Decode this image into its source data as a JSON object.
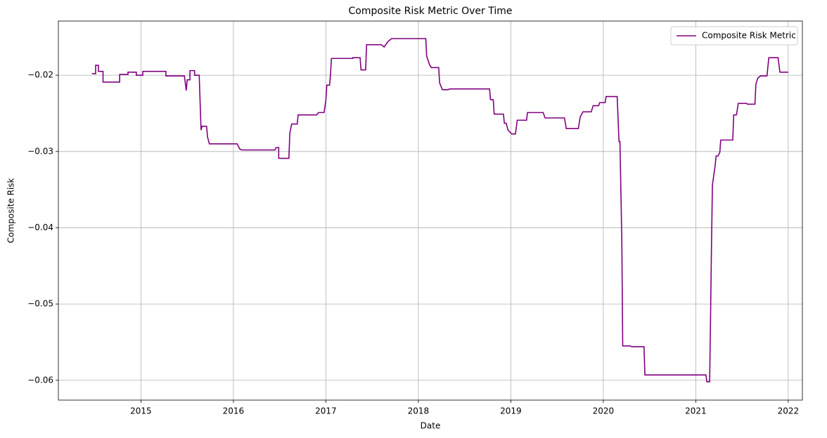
{
  "chart_data": {
    "type": "line",
    "title": "Composite Risk Metric Over Time",
    "x_label": "Date",
    "y_label": "Composite Risk",
    "x": [
      2014.47,
      2014.51,
      2014.51,
      2014.54,
      2014.54,
      2014.59,
      2014.59,
      2014.77,
      2014.77,
      2014.86,
      2014.86,
      2014.95,
      2014.95,
      2015.02,
      2015.02,
      2015.27,
      2015.27,
      2015.47,
      2015.49,
      2015.5,
      2015.53,
      2015.53,
      2015.58,
      2015.58,
      2015.63,
      2015.65,
      2015.66,
      2015.71,
      2015.72,
      2015.74,
      2016.04,
      2016.07,
      2016.09,
      2016.45,
      2016.46,
      2016.49,
      2016.49,
      2016.6,
      2016.61,
      2016.63,
      2016.69,
      2016.7,
      2016.9,
      2016.92,
      2016.98,
      2017.0,
      2017.01,
      2017.04,
      2017.05,
      2017.06,
      2017.29,
      2017.29,
      2017.37,
      2017.38,
      2017.43,
      2017.44,
      2017.6,
      2017.63,
      2017.67,
      2017.71,
      2018.08,
      2018.09,
      2018.12,
      2018.14,
      2018.22,
      2018.23,
      2018.26,
      2018.32,
      2018.34,
      2018.77,
      2018.78,
      2018.81,
      2018.82,
      2018.92,
      2018.93,
      2018.95,
      2018.97,
      2019.01,
      2019.05,
      2019.07,
      2019.17,
      2019.18,
      2019.35,
      2019.37,
      2019.58,
      2019.6,
      2019.73,
      2019.75,
      2019.78,
      2019.87,
      2019.89,
      2019.95,
      2019.96,
      2020.02,
      2020.03,
      2020.15,
      2020.17,
      2020.18,
      2020.2,
      2020.21,
      2020.29,
      2020.31,
      2020.44,
      2020.45,
      2021.11,
      2021.12,
      2021.15,
      2021.16,
      2021.17,
      2021.18,
      2021.21,
      2021.22,
      2021.24,
      2021.26,
      2021.27,
      2021.4,
      2021.41,
      2021.44,
      2021.46,
      2021.55,
      2021.56,
      2021.64,
      2021.65,
      2021.67,
      2021.7,
      2021.77,
      2021.79,
      2021.89,
      2021.91,
      2022.0
    ],
    "series": [
      {
        "name": "Composite Risk Metric",
        "color": "#800080",
        "values": [
          -0.0198,
          -0.0198,
          -0.0187,
          -0.0187,
          -0.0195,
          -0.0195,
          -0.0209,
          -0.0209,
          -0.0199,
          -0.0199,
          -0.0196,
          -0.0196,
          -0.02,
          -0.02,
          -0.0195,
          -0.0195,
          -0.0201,
          -0.0201,
          -0.022,
          -0.0206,
          -0.0206,
          -0.0194,
          -0.0194,
          -0.02,
          -0.02,
          -0.0272,
          -0.0267,
          -0.0267,
          -0.0281,
          -0.029,
          -0.029,
          -0.0297,
          -0.0298,
          -0.0298,
          -0.0295,
          -0.0295,
          -0.0309,
          -0.0309,
          -0.0276,
          -0.0264,
          -0.0264,
          -0.0252,
          -0.0252,
          -0.0249,
          -0.0249,
          -0.0233,
          -0.0213,
          -0.0213,
          -0.0199,
          -0.0178,
          -0.0178,
          -0.0177,
          -0.0177,
          -0.0193,
          -0.0193,
          -0.016,
          -0.016,
          -0.0163,
          -0.0156,
          -0.0152,
          -0.0152,
          -0.0175,
          -0.0186,
          -0.019,
          -0.019,
          -0.021,
          -0.0219,
          -0.0219,
          -0.0218,
          -0.0218,
          -0.0232,
          -0.0232,
          -0.0251,
          -0.0251,
          -0.0263,
          -0.0263,
          -0.0272,
          -0.0277,
          -0.0277,
          -0.0259,
          -0.0259,
          -0.0249,
          -0.0249,
          -0.0256,
          -0.0256,
          -0.027,
          -0.027,
          -0.0255,
          -0.0248,
          -0.0248,
          -0.024,
          -0.024,
          -0.0236,
          -0.0236,
          -0.0228,
          -0.0228,
          -0.0287,
          -0.0287,
          -0.0414,
          -0.0555,
          -0.0555,
          -0.0556,
          -0.0556,
          -0.0593,
          -0.0593,
          -0.0602,
          -0.0602,
          -0.0516,
          -0.0424,
          -0.0344,
          -0.0318,
          -0.0306,
          -0.0306,
          -0.0301,
          -0.0285,
          -0.0285,
          -0.0252,
          -0.0252,
          -0.0237,
          -0.0237,
          -0.0238,
          -0.0238,
          -0.0212,
          -0.0204,
          -0.0201,
          -0.0201,
          -0.0177,
          -0.0177,
          -0.0196,
          -0.0196
        ]
      }
    ],
    "xlim": [
      2014.107,
      2022.153
    ],
    "xticks": [
      2015,
      2016,
      2017,
      2018,
      2019,
      2020,
      2021,
      2022
    ],
    "ylim": [
      -0.0626,
      -0.0129
    ],
    "yticks": [
      {
        "value": -0.06,
        "label": "−0.06"
      },
      {
        "value": -0.05,
        "label": "−0.05"
      },
      {
        "value": -0.04,
        "label": "−0.04"
      },
      {
        "value": -0.03,
        "label": "−0.03"
      },
      {
        "value": -0.02,
        "label": "−0.02"
      }
    ],
    "grid": true,
    "legend": "upper right"
  }
}
